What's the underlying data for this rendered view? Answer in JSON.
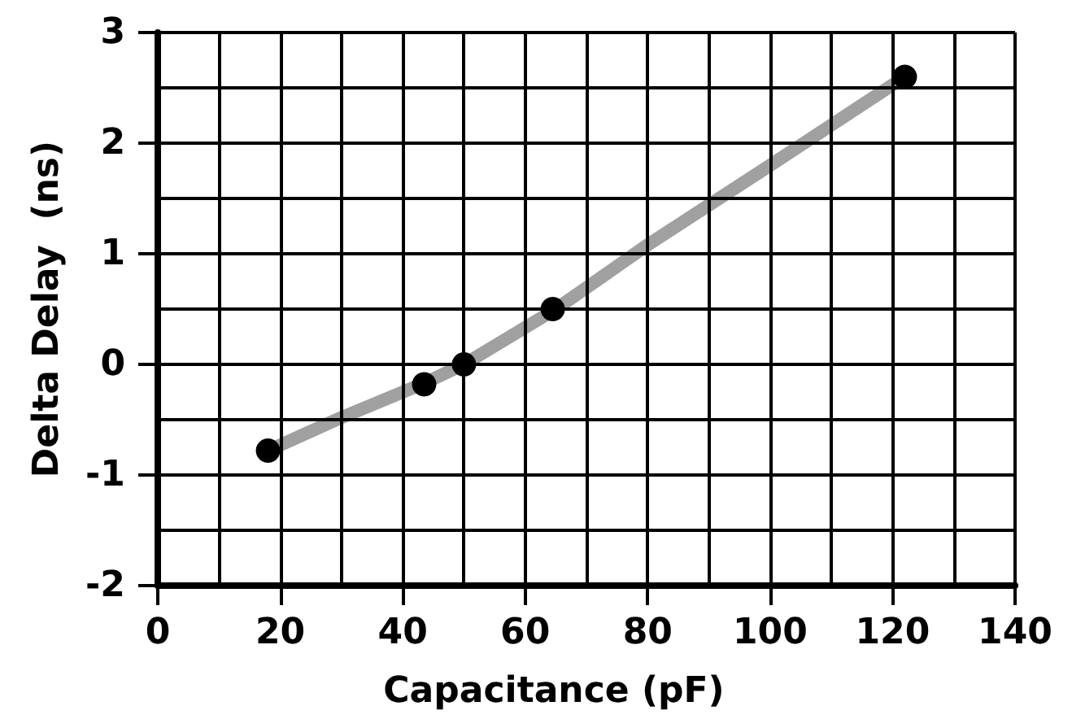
{
  "chart_data": {
    "type": "scatter",
    "xlabel": "Capacitance (pF)",
    "ylabel": "Delta Delay  (ns)",
    "series": [
      {
        "type": "line",
        "color": "#a0a0a0",
        "x": [
          18,
          30,
          43.5,
          50,
          65,
          80,
          100,
          122
        ],
        "values": [
          -0.78,
          -0.48,
          -0.17,
          0,
          0.5,
          1.08,
          1.8,
          2.6
        ],
        "marker": "none",
        "line_style": "solid"
      },
      {
        "color": "#000000",
        "x": [
          18,
          43.5,
          50,
          64.5,
          122
        ],
        "values": [
          -0.78,
          -0.18,
          0,
          0.5,
          2.6
        ],
        "marker": "circle"
      }
    ],
    "xlim": [
      0,
      140
    ],
    "ylim": [
      -2,
      3
    ],
    "xticks": [
      0,
      {
        "value": 10,
        "label": null
      },
      20,
      {
        "value": 30,
        "label": null
      },
      40,
      {
        "value": 50,
        "label": null
      },
      60,
      {
        "value": 70,
        "label": null
      },
      80,
      {
        "value": 90,
        "label": null
      },
      100,
      {
        "value": 110,
        "label": null
      },
      120,
      {
        "value": 130,
        "label": null
      },
      140
    ],
    "yticks": [
      -2,
      {
        "value": -1.5,
        "label": null
      },
      -1,
      {
        "value": -0.5,
        "label": null
      },
      0,
      {
        "value": 0.5,
        "label": null
      },
      1,
      {
        "value": 1.5,
        "label": null
      },
      2,
      {
        "value": 2.5,
        "label": null
      },
      3
    ],
    "grid": true
  }
}
